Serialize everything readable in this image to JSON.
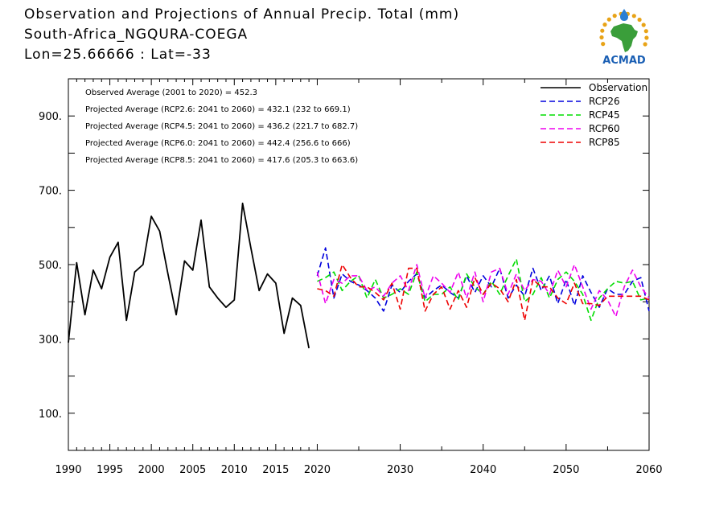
{
  "header": {
    "line1": "Observation and Projections of Annual Precip. Total (mm)",
    "line2": "South-Africa_NGQURA-COEGA",
    "line3": "Lon=25.66666 : Lat=-33"
  },
  "logo": {
    "text": "ACMAD",
    "colors": {
      "africa": "#3a9e3a",
      "rays": "#e8a317",
      "drop": "#2a7fd4",
      "text": "#1a5fb4"
    }
  },
  "chart_data": {
    "type": "line",
    "xlim": [
      1990,
      2060
    ],
    "ylim": [
      0,
      1000
    ],
    "x_ticks": [
      1990,
      1995,
      2000,
      2005,
      2010,
      2015,
      2020,
      2030,
      2040,
      2050,
      2060
    ],
    "y_ticks": [
      100,
      300,
      500,
      700,
      900
    ],
    "y_tick_labels": [
      "100.",
      "300.",
      "500.",
      "700.",
      "900."
    ],
    "annotations": [
      "Observed Average (2001 to 2020) = 452.3",
      "Projected Average (RCP2.6: 2041 to 2060) = 432.1 (232 to 669.1)",
      "Projected Average (RCP4.5: 2041 to 2060) = 436.2 (221.7 to 682.7)",
      "Projected Average (RCP6.0: 2041 to 2060) = 442.4 (256.6 to 666)",
      "Projected Average (RCP8.5: 2041 to 2060) = 417.6 (205.3 to 663.6)"
    ],
    "legend_position": "top-right",
    "series": [
      {
        "name": "Observation",
        "color": "#000000",
        "dashed": false,
        "x": [
          1990,
          1991,
          1992,
          1993,
          1994,
          1995,
          1996,
          1997,
          1998,
          1999,
          2000,
          2001,
          2002,
          2003,
          2004,
          2005,
          2006,
          2007,
          2008,
          2009,
          2010,
          2011,
          2012,
          2013,
          2014,
          2015,
          2016,
          2017,
          2018,
          2019,
          2020
        ],
        "y": [
          290,
          505,
          365,
          485,
          435,
          520,
          560,
          350,
          480,
          500,
          630,
          590,
          475,
          365,
          510,
          485,
          620,
          440,
          410,
          385,
          405,
          665,
          545,
          430,
          475,
          450,
          315,
          410,
          390,
          275,
          null
        ]
      },
      {
        "name": "RCP26",
        "color": "#0000dd",
        "dashed": true,
        "x": [
          2020,
          2021,
          2022,
          2023,
          2024,
          2025,
          2026,
          2027,
          2028,
          2029,
          2030,
          2031,
          2032,
          2033,
          2034,
          2035,
          2036,
          2037,
          2038,
          2039,
          2040,
          2041,
          2042,
          2043,
          2044,
          2045,
          2046,
          2047,
          2048,
          2049,
          2050,
          2051,
          2052,
          2053,
          2054,
          2055,
          2056,
          2057,
          2058,
          2059,
          2060
        ],
        "y": [
          470,
          545,
          410,
          475,
          455,
          445,
          430,
          410,
          375,
          445,
          425,
          455,
          475,
          410,
          430,
          445,
          425,
          410,
          470,
          425,
          470,
          440,
          490,
          410,
          445,
          415,
          490,
          430,
          470,
          395,
          460,
          390,
          470,
          425,
          385,
          435,
          420,
          420,
          455,
          465,
          375
        ]
      },
      {
        "name": "RCP45",
        "color": "#00dd00",
        "dashed": true,
        "x": [
          2020,
          2021,
          2022,
          2023,
          2024,
          2025,
          2026,
          2027,
          2028,
          2029,
          2030,
          2031,
          2032,
          2033,
          2034,
          2035,
          2036,
          2037,
          2038,
          2039,
          2040,
          2041,
          2042,
          2043,
          2044,
          2045,
          2046,
          2047,
          2048,
          2049,
          2050,
          2051,
          2052,
          2053,
          2054,
          2055,
          2056,
          2057,
          2058,
          2059,
          2060
        ],
        "y": [
          455,
          465,
          480,
          430,
          455,
          470,
          410,
          460,
          410,
          420,
          435,
          420,
          480,
          400,
          420,
          420,
          440,
          405,
          475,
          440,
          420,
          455,
          420,
          470,
          515,
          400,
          420,
          465,
          410,
          460,
          480,
          455,
          420,
          350,
          410,
          435,
          455,
          450,
          455,
          405,
          410
        ]
      },
      {
        "name": "RCP60",
        "color": "#ee00ee",
        "dashed": true,
        "x": [
          2020,
          2021,
          2022,
          2023,
          2024,
          2025,
          2026,
          2027,
          2028,
          2029,
          2030,
          2031,
          2032,
          2033,
          2034,
          2035,
          2036,
          2037,
          2038,
          2039,
          2040,
          2041,
          2042,
          2043,
          2044,
          2045,
          2046,
          2047,
          2048,
          2049,
          2050,
          2051,
          2052,
          2053,
          2054,
          2055,
          2056,
          2057,
          2058,
          2059,
          2060
        ],
        "y": [
          480,
          395,
          460,
          450,
          470,
          470,
          430,
          440,
          415,
          450,
          470,
          430,
          500,
          410,
          470,
          450,
          425,
          480,
          410,
          480,
          400,
          480,
          490,
          420,
          475,
          430,
          460,
          455,
          420,
          485,
          440,
          500,
          440,
          380,
          430,
          405,
          360,
          440,
          485,
          440,
          410
        ]
      },
      {
        "name": "RCP85",
        "color": "#ee0000",
        "dashed": true,
        "x": [
          2020,
          2021,
          2022,
          2023,
          2024,
          2025,
          2026,
          2027,
          2028,
          2029,
          2030,
          2031,
          2032,
          2033,
          2034,
          2035,
          2036,
          2037,
          2038,
          2039,
          2040,
          2041,
          2042,
          2043,
          2044,
          2045,
          2046,
          2047,
          2048,
          2049,
          2050,
          2051,
          2052,
          2053,
          2054,
          2055,
          2056,
          2057,
          2058,
          2059,
          2060
        ],
        "y": [
          435,
          430,
          415,
          500,
          465,
          440,
          440,
          425,
          405,
          450,
          380,
          490,
          490,
          375,
          420,
          440,
          380,
          430,
          385,
          465,
          420,
          450,
          435,
          400,
          460,
          350,
          460,
          440,
          440,
          410,
          395,
          450,
          395,
          395,
          390,
          415,
          415,
          415,
          415,
          415,
          405
        ]
      }
    ]
  }
}
